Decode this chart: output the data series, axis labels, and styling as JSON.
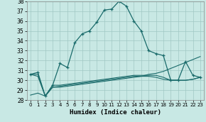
{
  "xlabel": "Humidex (Indice chaleur)",
  "xlim": [
    -0.5,
    23.5
  ],
  "ylim": [
    28,
    38
  ],
  "xticks": [
    0,
    1,
    2,
    3,
    4,
    5,
    6,
    7,
    8,
    9,
    10,
    11,
    12,
    13,
    14,
    15,
    16,
    17,
    18,
    19,
    20,
    21,
    22,
    23
  ],
  "yticks": [
    28,
    29,
    30,
    31,
    32,
    33,
    34,
    35,
    36,
    37,
    38
  ],
  "background_color": "#c8e8e4",
  "grid_color": "#a0c8c4",
  "line_color": "#1a6b6b",
  "series": {
    "main": [
      30.6,
      30.8,
      28.4,
      29.5,
      31.7,
      31.3,
      33.8,
      34.7,
      35.0,
      35.9,
      37.1,
      37.2,
      38.0,
      37.5,
      36.0,
      35.0,
      33.0,
      32.7,
      32.5,
      30.0,
      30.0,
      31.9,
      30.5,
      30.3
    ],
    "line2": [
      30.6,
      30.6,
      28.4,
      29.5,
      29.5,
      29.6,
      29.7,
      29.8,
      29.9,
      30.0,
      30.1,
      30.2,
      30.3,
      30.4,
      30.5,
      30.5,
      30.5,
      30.5,
      30.3,
      30.0,
      30.0,
      30.0,
      30.1,
      30.3
    ],
    "line3": [
      30.6,
      30.4,
      28.4,
      29.3,
      29.4,
      29.5,
      29.6,
      29.7,
      29.8,
      29.9,
      30.0,
      30.1,
      30.2,
      30.3,
      30.4,
      30.4,
      30.4,
      30.3,
      30.1,
      30.0,
      30.0,
      30.0,
      30.1,
      30.3
    ],
    "line4": [
      28.5,
      28.7,
      28.4,
      29.3,
      29.3,
      29.4,
      29.5,
      29.6,
      29.7,
      29.8,
      29.9,
      30.0,
      30.1,
      30.2,
      30.3,
      30.4,
      30.6,
      30.7,
      30.9,
      31.2,
      31.5,
      31.8,
      32.1,
      32.4
    ]
  }
}
